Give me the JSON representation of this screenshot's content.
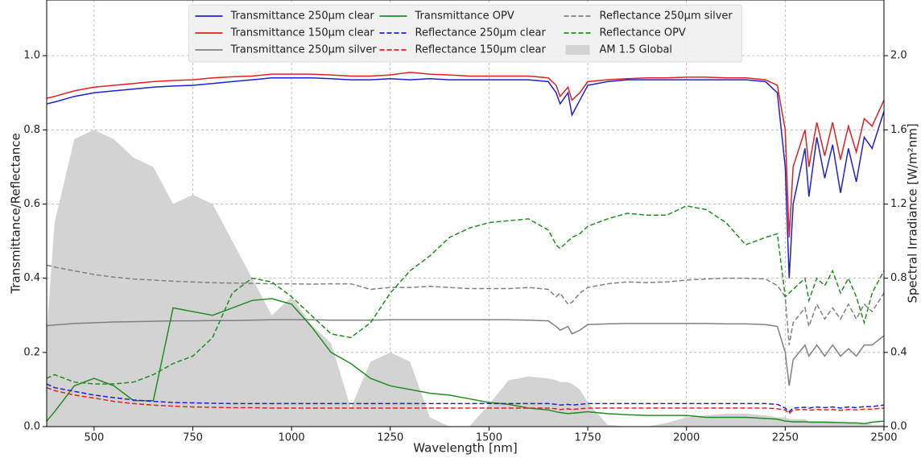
{
  "chart_data": {
    "type": "line",
    "xlabel": "Wavelength [nm]",
    "ylabel": "Transmittance/Reflectance",
    "y2label": "Spectral Irradiance [W/m²nm]",
    "x": [
      380,
      400,
      450,
      500,
      550,
      600,
      650,
      700,
      750,
      800,
      850,
      900,
      950,
      1000,
      1050,
      1100,
      1150,
      1200,
      1250,
      1300,
      1350,
      1400,
      1450,
      1500,
      1550,
      1600,
      1650,
      1670,
      1680,
      1700,
      1710,
      1730,
      1750,
      1800,
      1850,
      1900,
      1950,
      2000,
      2050,
      2100,
      2150,
      2200,
      2230,
      2250,
      2260,
      2270,
      2300,
      2310,
      2330,
      2350,
      2370,
      2390,
      2410,
      2430,
      2450,
      2470,
      2500
    ],
    "xlim": [
      380,
      2500
    ],
    "xticks": [
      500,
      750,
      1000,
      1250,
      1500,
      1750,
      2000,
      2250,
      2500
    ],
    "ylim": [
      0,
      1.15
    ],
    "yticks": [
      {
        "value": 0,
        "label": "0.0"
      },
      0.2,
      0.4,
      0.6,
      0.8,
      {
        "value": 1,
        "label": "1.0"
      }
    ],
    "y2lim": [
      0,
      2.3
    ],
    "y2ticks": [
      {
        "value": 0,
        "label": "0.0"
      },
      0.4,
      0.8,
      1.2,
      1.6,
      {
        "value": 2,
        "label": "2.0"
      }
    ],
    "grid": true,
    "legend": "upper center",
    "series": [
      {
        "name": "Transmittance 250μm clear",
        "color": "#1f1fd6",
        "dash": false,
        "values": [
          0.87,
          0.875,
          0.89,
          0.9,
          0.905,
          0.91,
          0.915,
          0.918,
          0.92,
          0.925,
          0.93,
          0.935,
          0.94,
          0.94,
          0.94,
          0.938,
          0.935,
          0.935,
          0.938,
          0.935,
          0.938,
          0.935,
          0.935,
          0.935,
          0.935,
          0.935,
          0.93,
          0.9,
          0.87,
          0.9,
          0.84,
          0.88,
          0.92,
          0.93,
          0.935,
          0.935,
          0.935,
          0.935,
          0.935,
          0.935,
          0.935,
          0.93,
          0.9,
          0.7,
          0.4,
          0.6,
          0.75,
          0.62,
          0.78,
          0.67,
          0.76,
          0.63,
          0.75,
          0.66,
          0.78,
          0.75,
          0.85
        ]
      },
      {
        "name": "Transmittance 150μm clear",
        "color": "#e02020",
        "dash": false,
        "values": [
          0.885,
          0.89,
          0.905,
          0.915,
          0.92,
          0.925,
          0.93,
          0.933,
          0.935,
          0.94,
          0.943,
          0.945,
          0.95,
          0.95,
          0.95,
          0.948,
          0.945,
          0.945,
          0.948,
          0.955,
          0.95,
          0.948,
          0.945,
          0.945,
          0.945,
          0.945,
          0.94,
          0.92,
          0.89,
          0.915,
          0.88,
          0.9,
          0.93,
          0.935,
          0.938,
          0.94,
          0.94,
          0.942,
          0.942,
          0.94,
          0.94,
          0.935,
          0.92,
          0.8,
          0.51,
          0.7,
          0.8,
          0.7,
          0.82,
          0.73,
          0.82,
          0.72,
          0.81,
          0.74,
          0.83,
          0.81,
          0.88
        ]
      },
      {
        "name": "Transmittance 250μm silver",
        "color": "#808080",
        "dash": false,
        "values": [
          0.272,
          0.274,
          0.278,
          0.28,
          0.282,
          0.283,
          0.284,
          0.285,
          0.285,
          0.286,
          0.286,
          0.287,
          0.288,
          0.288,
          0.288,
          0.287,
          0.287,
          0.287,
          0.288,
          0.288,
          0.288,
          0.288,
          0.288,
          0.288,
          0.288,
          0.287,
          0.285,
          0.27,
          0.26,
          0.27,
          0.25,
          0.26,
          0.275,
          0.277,
          0.278,
          0.278,
          0.278,
          0.278,
          0.278,
          0.277,
          0.277,
          0.275,
          0.27,
          0.2,
          0.11,
          0.18,
          0.22,
          0.19,
          0.22,
          0.19,
          0.22,
          0.19,
          0.21,
          0.19,
          0.22,
          0.22,
          0.245
        ]
      },
      {
        "name": "Transmittance OPV",
        "color": "#228b22",
        "dash": false,
        "values": [
          0.015,
          0.04,
          0.11,
          0.13,
          0.11,
          0.07,
          0.07,
          0.32,
          0.31,
          0.3,
          0.32,
          0.34,
          0.345,
          0.33,
          0.27,
          0.2,
          0.17,
          0.13,
          0.11,
          0.1,
          0.09,
          0.085,
          0.075,
          0.065,
          0.06,
          0.05,
          0.045,
          0.04,
          0.038,
          0.035,
          0.036,
          0.038,
          0.04,
          0.035,
          0.032,
          0.03,
          0.03,
          0.03,
          0.025,
          0.025,
          0.025,
          0.022,
          0.02,
          0.015,
          0.014,
          0.013,
          0.013,
          0.012,
          0.012,
          0.012,
          0.011,
          0.011,
          0.01,
          0.01,
          0.008,
          0.012,
          0.015
        ]
      },
      {
        "name": "Reflectance 250μm clear",
        "color": "#1f1fd6",
        "dash": true,
        "values": [
          0.115,
          0.105,
          0.095,
          0.085,
          0.078,
          0.072,
          0.068,
          0.065,
          0.064,
          0.063,
          0.062,
          0.062,
          0.062,
          0.062,
          0.062,
          0.062,
          0.062,
          0.062,
          0.062,
          0.062,
          0.062,
          0.062,
          0.062,
          0.062,
          0.062,
          0.062,
          0.062,
          0.06,
          0.058,
          0.06,
          0.058,
          0.06,
          0.062,
          0.062,
          0.062,
          0.062,
          0.062,
          0.062,
          0.062,
          0.062,
          0.062,
          0.062,
          0.06,
          0.05,
          0.04,
          0.05,
          0.052,
          0.05,
          0.053,
          0.051,
          0.053,
          0.05,
          0.053,
          0.051,
          0.054,
          0.054,
          0.058
        ]
      },
      {
        "name": "Reflectance 150μm clear",
        "color": "#e02020",
        "dash": true,
        "values": [
          0.105,
          0.097,
          0.085,
          0.077,
          0.068,
          0.062,
          0.058,
          0.055,
          0.053,
          0.052,
          0.051,
          0.051,
          0.05,
          0.05,
          0.05,
          0.05,
          0.05,
          0.05,
          0.05,
          0.05,
          0.05,
          0.05,
          0.05,
          0.05,
          0.05,
          0.05,
          0.05,
          0.048,
          0.046,
          0.048,
          0.046,
          0.048,
          0.05,
          0.05,
          0.05,
          0.05,
          0.05,
          0.05,
          0.05,
          0.05,
          0.05,
          0.05,
          0.048,
          0.045,
          0.035,
          0.045,
          0.046,
          0.044,
          0.046,
          0.045,
          0.046,
          0.044,
          0.046,
          0.045,
          0.047,
          0.047,
          0.05
        ]
      },
      {
        "name": "Reflectance 250μm silver",
        "color": "#808080",
        "dash": true,
        "values": [
          0.435,
          0.43,
          0.42,
          0.41,
          0.403,
          0.398,
          0.395,
          0.392,
          0.39,
          0.388,
          0.387,
          0.386,
          0.385,
          0.385,
          0.384,
          0.385,
          0.385,
          0.37,
          0.375,
          0.375,
          0.378,
          0.375,
          0.372,
          0.372,
          0.372,
          0.375,
          0.37,
          0.35,
          0.36,
          0.33,
          0.335,
          0.36,
          0.375,
          0.385,
          0.39,
          0.388,
          0.39,
          0.395,
          0.398,
          0.4,
          0.4,
          0.398,
          0.38,
          0.35,
          0.22,
          0.28,
          0.32,
          0.27,
          0.33,
          0.29,
          0.32,
          0.29,
          0.33,
          0.29,
          0.33,
          0.31,
          0.36
        ]
      },
      {
        "name": "Reflectance OPV",
        "color": "#228b22",
        "dash": true,
        "values": [
          0.13,
          0.14,
          0.12,
          0.115,
          0.115,
          0.12,
          0.14,
          0.17,
          0.19,
          0.24,
          0.36,
          0.4,
          0.39,
          0.35,
          0.3,
          0.25,
          0.24,
          0.28,
          0.36,
          0.42,
          0.46,
          0.51,
          0.535,
          0.55,
          0.555,
          0.56,
          0.53,
          0.49,
          0.48,
          0.5,
          0.51,
          0.52,
          0.54,
          0.56,
          0.575,
          0.57,
          0.57,
          0.595,
          0.585,
          0.55,
          0.49,
          0.51,
          0.52,
          0.35,
          0.36,
          0.37,
          0.4,
          0.34,
          0.4,
          0.38,
          0.42,
          0.36,
          0.4,
          0.35,
          0.28,
          0.36,
          0.42
        ]
      },
      {
        "name": "AM 1.5 Global",
        "color": "#d3d3d3",
        "kind": "area",
        "axis": "y2",
        "values": [
          0.5,
          1.1,
          1.55,
          1.6,
          1.55,
          1.45,
          1.4,
          1.2,
          1.25,
          1.2,
          1.0,
          0.8,
          0.6,
          0.7,
          0.55,
          0.45,
          0.1,
          0.35,
          0.4,
          0.35,
          0.05,
          0,
          0,
          0.12,
          0.25,
          0.27,
          0.26,
          0.25,
          0.24,
          0.24,
          0.23,
          0.2,
          0.13,
          0.01,
          0,
          0,
          0.02,
          0.05,
          0.06,
          0.07,
          0.07,
          0.06,
          0.05,
          0.05,
          0.04,
          0.04,
          0.04,
          0.03,
          0.03,
          0.03,
          0.03,
          0.02,
          0.02,
          0.02,
          0.02,
          0.01,
          0.01
        ]
      }
    ]
  }
}
